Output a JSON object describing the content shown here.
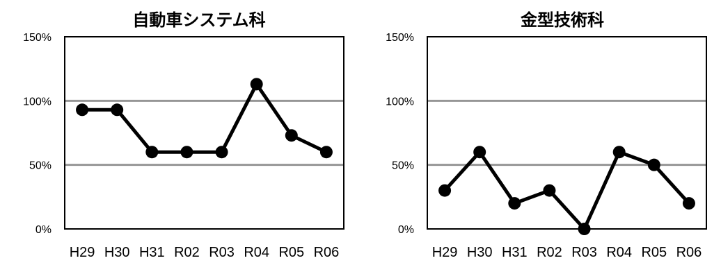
{
  "chart_data": [
    {
      "type": "line",
      "title": "自動車システム科",
      "categories": [
        "H29",
        "H30",
        "H31",
        "R02",
        "R03",
        "R04",
        "R05",
        "R06"
      ],
      "values": [
        93,
        93,
        60,
        60,
        60,
        113,
        73,
        60
      ],
      "ylim": [
        0,
        150
      ],
      "yticks": [
        "0%",
        "50%",
        "100%",
        "150%"
      ],
      "grid": true,
      "colors": {
        "line": "#000000",
        "marker": "#000000",
        "grid": "#969696"
      }
    },
    {
      "type": "line",
      "title": "金型技術科",
      "categories": [
        "H29",
        "H30",
        "H31",
        "R02",
        "R03",
        "R04",
        "R05",
        "R06"
      ],
      "values": [
        30,
        60,
        20,
        30,
        0,
        60,
        50,
        20
      ],
      "ylim": [
        0,
        150
      ],
      "yticks": [
        "0%",
        "50%",
        "100%",
        "150%"
      ],
      "grid": true,
      "colors": {
        "line": "#000000",
        "marker": "#000000",
        "grid": "#969696"
      }
    }
  ]
}
